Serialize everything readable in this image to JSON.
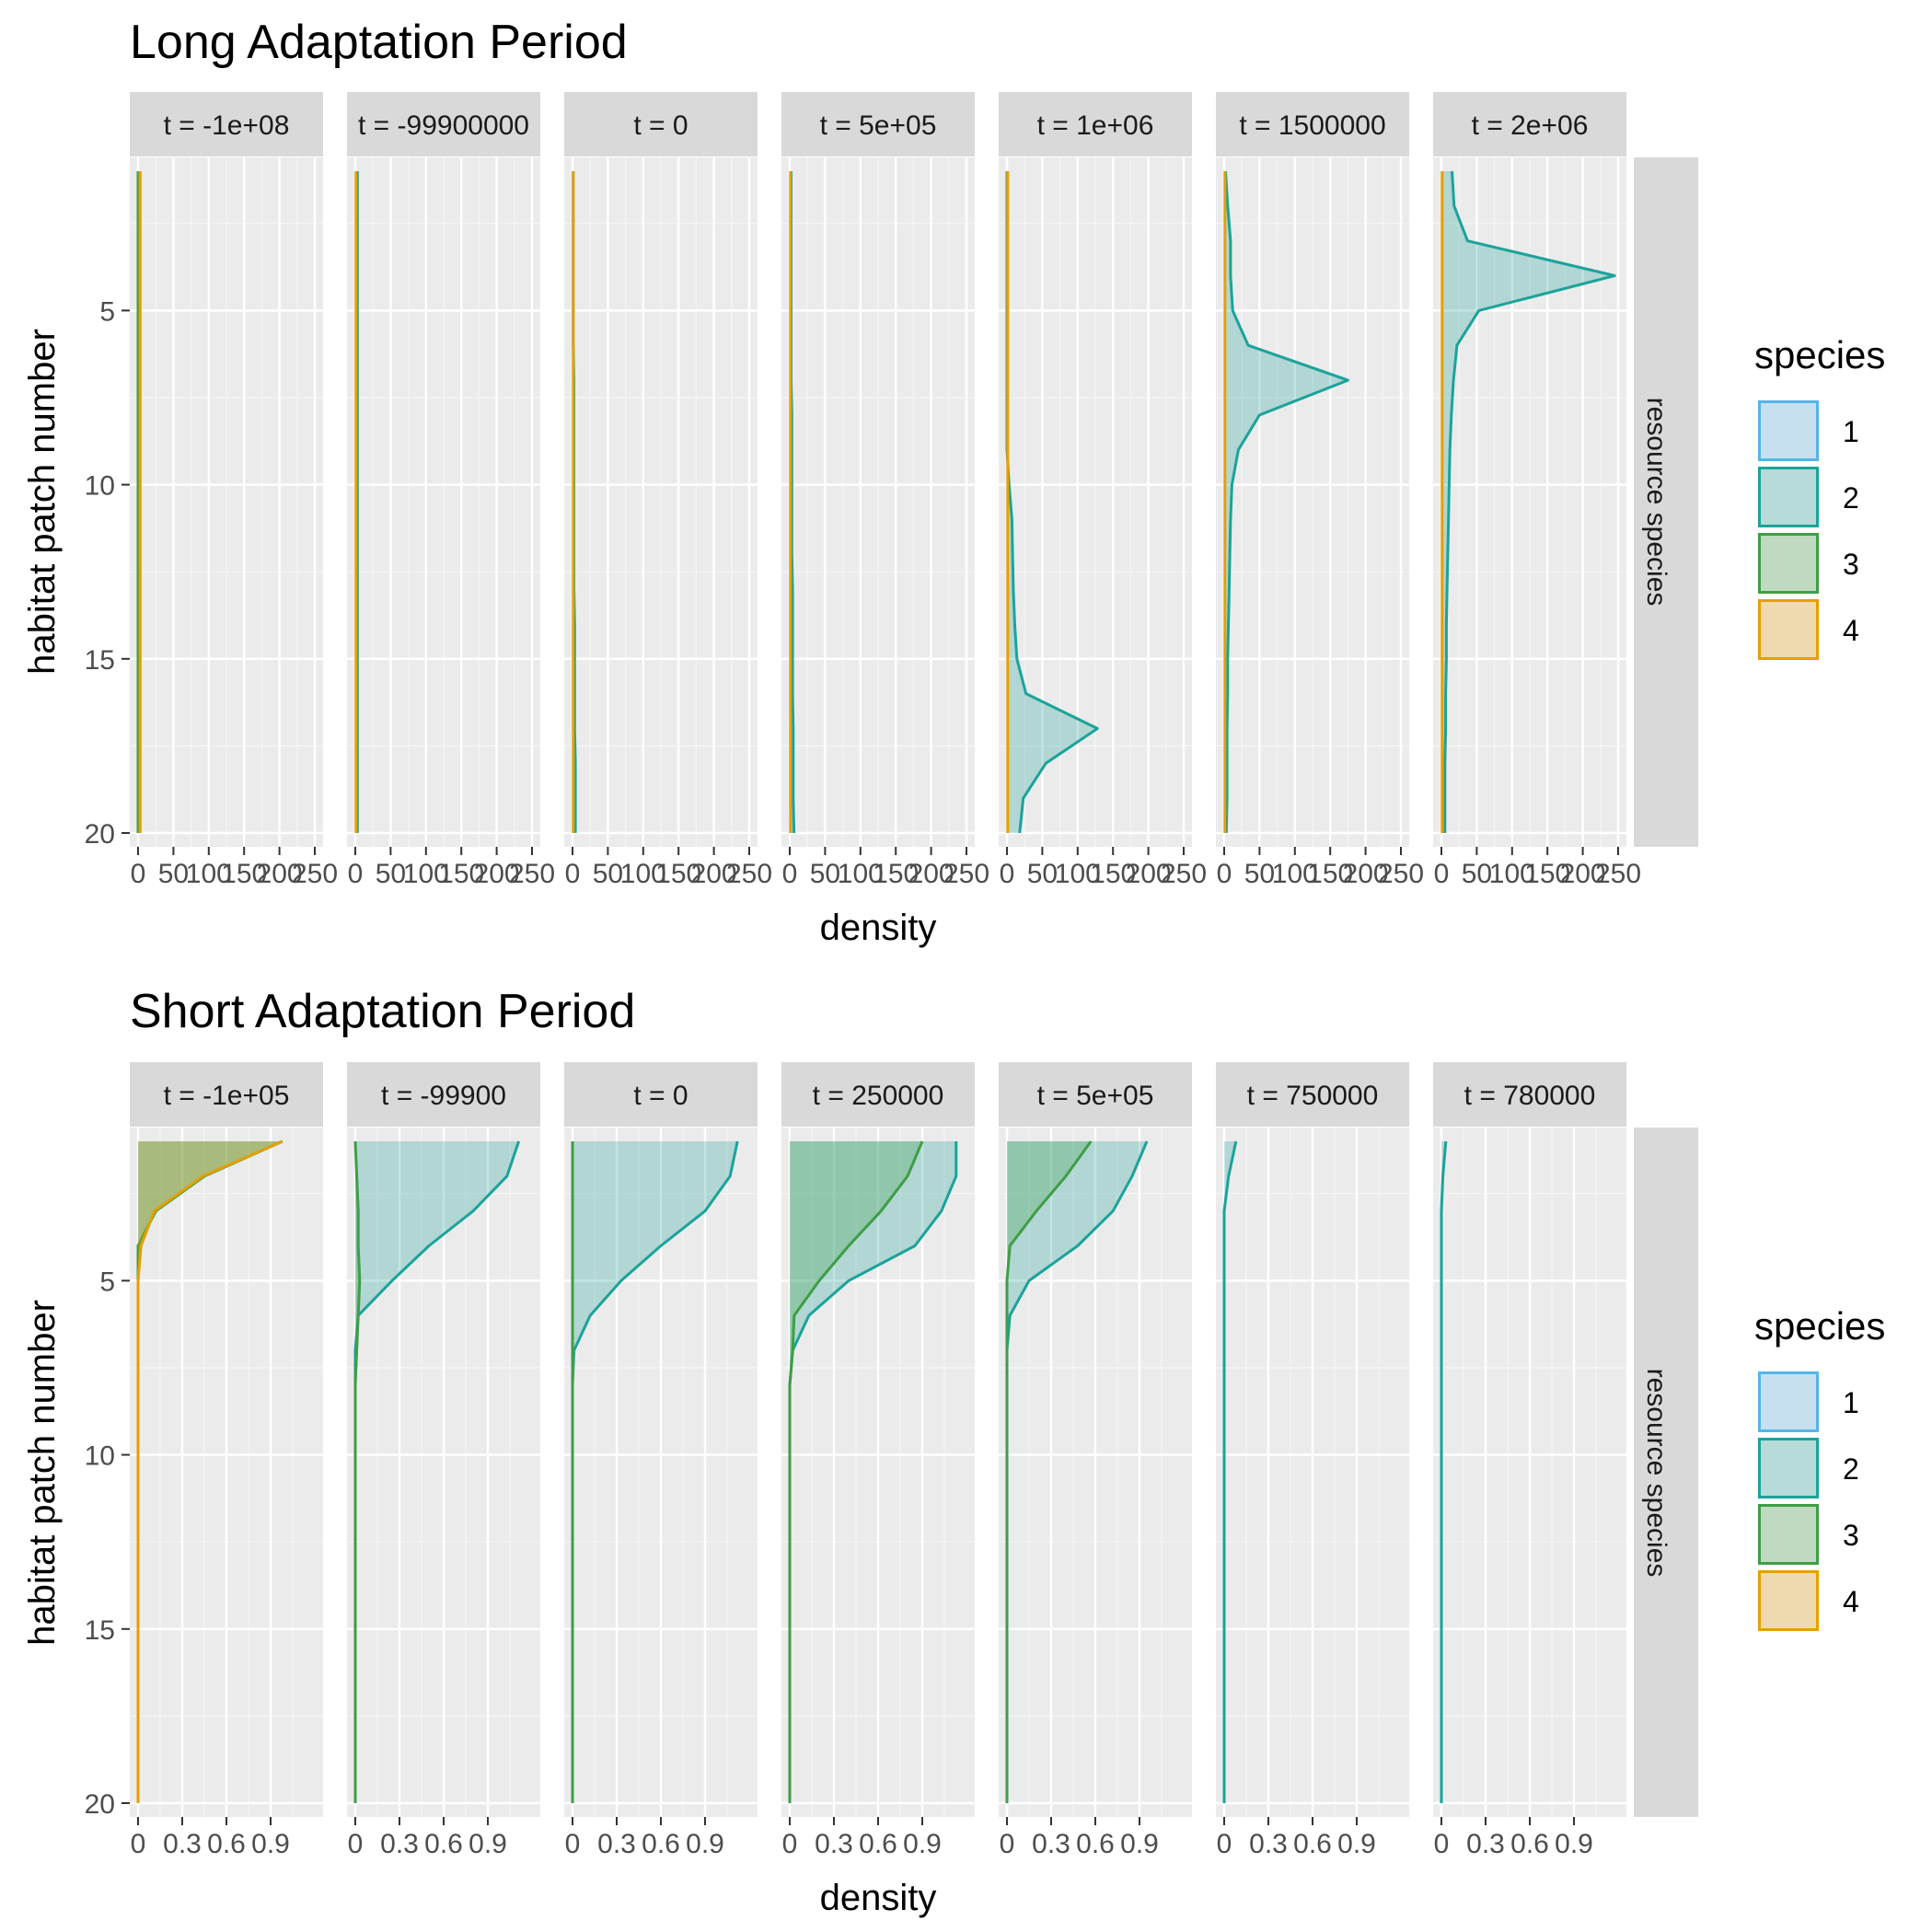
{
  "legend": {
    "title": "species",
    "colors": {
      "1": "#56B4E9",
      "2": "#1BA39A",
      "3": "#3E9E45",
      "4": "#E69F00"
    }
  },
  "row_strip_label": "resource species",
  "panels_background": "#EBEBEB",
  "chart_data": [
    {
      "type": "area",
      "title": "Long Adaptation Period",
      "xlabel": "density",
      "ylabel": "habitat patch number",
      "xlim": [
        0,
        250
      ],
      "ylim": [
        20,
        1
      ],
      "x_ticks": [
        0,
        50,
        100,
        150,
        200,
        250
      ],
      "x_tick_labels": [
        "0",
        "50",
        "100",
        "150",
        "200",
        "250"
      ],
      "y_ticks": [
        5,
        10,
        15,
        20
      ],
      "grid": true,
      "legend_position": "right",
      "legend_entries": [
        "1",
        "2",
        "3",
        "4"
      ],
      "patches": [
        1,
        2,
        3,
        4,
        5,
        6,
        7,
        8,
        9,
        10,
        11,
        12,
        13,
        14,
        15,
        16,
        17,
        18,
        19,
        20
      ],
      "facets": [
        {
          "label": "t = -1e+08",
          "series": [
            {
              "name": "2",
              "values": [
                0,
                0,
                0,
                0,
                0,
                0,
                0,
                0,
                0,
                0,
                0,
                0,
                0,
                0,
                0,
                0,
                0,
                0,
                0,
                0
              ]
            },
            {
              "name": "3",
              "values": [
                0,
                0,
                0,
                0,
                0,
                0,
                0,
                0,
                0,
                0,
                0,
                0,
                0,
                0,
                0,
                0,
                0,
                0,
                0,
                0
              ]
            },
            {
              "name": "4",
              "values": [
                3,
                3,
                3,
                3,
                3,
                3,
                3,
                3,
                3,
                3,
                3,
                3,
                3,
                3,
                3,
                3,
                3,
                3,
                3,
                3
              ]
            }
          ]
        },
        {
          "label": "t = -99900000",
          "series": [
            {
              "name": "2",
              "values": [
                3,
                3,
                3,
                3,
                3,
                3,
                3,
                3,
                3,
                3,
                3,
                3,
                3,
                3,
                3,
                3,
                3,
                3,
                3,
                3
              ]
            },
            {
              "name": "4",
              "values": [
                1,
                1,
                1,
                1,
                1,
                1,
                1,
                1,
                1,
                1,
                1,
                1,
                1,
                1,
                1,
                1,
                1,
                1,
                1,
                1
              ]
            }
          ]
        },
        {
          "label": "t = 0",
          "series": [
            {
              "name": "2",
              "values": [
                1,
                1,
                1,
                1,
                1,
                1,
                2,
                2,
                2,
                2,
                2,
                2,
                2,
                3,
                3,
                3,
                3,
                4,
                4,
                4
              ]
            },
            {
              "name": "4",
              "values": [
                1,
                1,
                1,
                1,
                1,
                1,
                1,
                1,
                1,
                1,
                1,
                1,
                1,
                1,
                1,
                1,
                1,
                1,
                1,
                1
              ]
            }
          ]
        },
        {
          "label": "t = 5e+05",
          "series": [
            {
              "name": "2",
              "values": [
                2,
                2,
                2,
                2,
                2,
                2,
                2,
                3,
                3,
                3,
                3,
                3,
                4,
                4,
                4,
                4,
                5,
                5,
                5,
                6
              ]
            },
            {
              "name": "4",
              "values": [
                1,
                1,
                1,
                1,
                1,
                1,
                1,
                1,
                1,
                1,
                1,
                1,
                1,
                1,
                1,
                1,
                1,
                1,
                1,
                1
              ]
            }
          ]
        },
        {
          "label": "t = 1e+06",
          "series": [
            {
              "name": "2",
              "values": [
                0,
                0,
                0,
                0,
                0,
                0,
                0,
                0,
                0,
                3,
                7,
                8,
                9,
                11,
                14,
                27,
                128,
                55,
                23,
                18
              ]
            },
            {
              "name": "4",
              "values": [
                1,
                1,
                1,
                1,
                1,
                1,
                1,
                1,
                1,
                1,
                1,
                1,
                1,
                1,
                1,
                1,
                1,
                1,
                1,
                1
              ]
            }
          ]
        },
        {
          "label": "t = 1500000",
          "series": [
            {
              "name": "2",
              "values": [
                2,
                5,
                9,
                9,
                12,
                34,
                175,
                50,
                20,
                11,
                9,
                8,
                7,
                6,
                5,
                5,
                4,
                4,
                4,
                3
              ]
            },
            {
              "name": "4",
              "values": [
                1,
                1,
                1,
                1,
                1,
                1,
                1,
                1,
                1,
                1,
                1,
                1,
                1,
                1,
                1,
                1,
                1,
                1,
                1,
                1
              ]
            }
          ]
        },
        {
          "label": "t = 2e+06",
          "series": [
            {
              "name": "2",
              "values": [
                15,
                18,
                37,
                245,
                53,
                22,
                17,
                14,
                12,
                11,
                10,
                9,
                8,
                7,
                7,
                6,
                6,
                5,
                5,
                5
              ]
            },
            {
              "name": "4",
              "values": [
                1,
                1,
                1,
                1,
                1,
                1,
                1,
                1,
                1,
                1,
                1,
                1,
                1,
                1,
                1,
                1,
                1,
                1,
                1,
                1
              ]
            }
          ]
        }
      ]
    },
    {
      "type": "area",
      "title": "Short Adaptation Period",
      "xlabel": "density",
      "ylabel": "habitat patch number",
      "xlim": [
        0,
        1.2
      ],
      "ylim": [
        20,
        1
      ],
      "x_ticks": [
        0,
        0.3,
        0.6,
        0.9
      ],
      "x_tick_labels": [
        "0",
        "0.3",
        "0.6",
        "0.9"
      ],
      "y_ticks": [
        5,
        10,
        15,
        20
      ],
      "grid": true,
      "legend_position": "right",
      "legend_entries": [
        "1",
        "2",
        "3",
        "4"
      ],
      "patches": [
        1,
        2,
        3,
        4,
        5,
        6,
        7,
        8,
        9,
        10,
        11,
        12,
        13,
        14,
        15,
        16,
        17,
        18,
        19,
        20
      ],
      "facets": [
        {
          "label": "t = -1e+05",
          "series": [
            {
              "name": "2",
              "values": [
                0.98,
                0.45,
                0.12,
                0,
                0,
                0,
                0,
                0,
                0,
                0,
                0,
                0,
                0,
                0,
                0,
                0,
                0,
                0,
                0,
                0
              ]
            },
            {
              "name": "3",
              "values": [
                0.98,
                0.45,
                0.12,
                0,
                0,
                0,
                0,
                0,
                0,
                0,
                0,
                0,
                0,
                0,
                0,
                0,
                0,
                0,
                0,
                0
              ]
            },
            {
              "name": "4",
              "values": [
                0.98,
                0.44,
                0.11,
                0.02,
                0,
                0,
                0,
                0,
                0,
                0,
                0,
                0,
                0,
                0,
                0,
                0,
                0,
                0,
                0,
                0
              ]
            }
          ]
        },
        {
          "label": "t = -99900",
          "series": [
            {
              "name": "2",
              "values": [
                1.11,
                1.03,
                0.8,
                0.5,
                0.25,
                0.02,
                0,
                0,
                0,
                0,
                0,
                0,
                0,
                0,
                0,
                0,
                0,
                0,
                0,
                0
              ]
            },
            {
              "name": "3",
              "values": [
                0,
                0.01,
                0.02,
                0.02,
                0.03,
                0.02,
                0.01,
                0,
                0,
                0,
                0,
                0,
                0,
                0,
                0,
                0,
                0,
                0,
                0,
                0
              ]
            }
          ]
        },
        {
          "label": "t = 0",
          "series": [
            {
              "name": "2",
              "values": [
                1.12,
                1.07,
                0.9,
                0.6,
                0.33,
                0.12,
                0.01,
                0,
                0,
                0,
                0,
                0,
                0,
                0,
                0,
                0,
                0,
                0,
                0,
                0
              ]
            },
            {
              "name": "3",
              "values": [
                0,
                0,
                0,
                0,
                0,
                0,
                0,
                0,
                0,
                0,
                0,
                0,
                0,
                0,
                0,
                0,
                0,
                0,
                0,
                0
              ]
            }
          ]
        },
        {
          "label": "t = 250000",
          "series": [
            {
              "name": "2",
              "values": [
                1.13,
                1.13,
                1.03,
                0.85,
                0.4,
                0.13,
                0.02,
                0,
                0,
                0,
                0,
                0,
                0,
                0,
                0,
                0,
                0,
                0,
                0,
                0
              ]
            },
            {
              "name": "3",
              "values": [
                0.9,
                0.8,
                0.62,
                0.4,
                0.2,
                0.03,
                0.02,
                0,
                0,
                0,
                0,
                0,
                0,
                0,
                0,
                0,
                0,
                0,
                0,
                0
              ]
            }
          ]
        },
        {
          "label": "t = 5e+05",
          "series": [
            {
              "name": "2",
              "values": [
                0.95,
                0.85,
                0.72,
                0.48,
                0.15,
                0.02,
                0,
                0,
                0,
                0,
                0,
                0,
                0,
                0,
                0,
                0,
                0,
                0,
                0,
                0
              ]
            },
            {
              "name": "3",
              "values": [
                0.57,
                0.4,
                0.2,
                0.02,
                0,
                0,
                0,
                0,
                0,
                0,
                0,
                0,
                0,
                0,
                0,
                0,
                0,
                0,
                0,
                0
              ]
            }
          ]
        },
        {
          "label": "t = 750000",
          "series": [
            {
              "name": "2",
              "values": [
                0.08,
                0.03,
                0,
                0,
                0,
                0,
                0,
                0,
                0,
                0,
                0,
                0,
                0,
                0,
                0,
                0,
                0,
                0,
                0,
                0
              ]
            }
          ]
        },
        {
          "label": "t = 780000",
          "series": [
            {
              "name": "2",
              "values": [
                0.03,
                0.01,
                0,
                0,
                0,
                0,
                0,
                0,
                0,
                0,
                0,
                0,
                0,
                0,
                0,
                0,
                0,
                0,
                0,
                0
              ]
            }
          ]
        }
      ]
    }
  ]
}
